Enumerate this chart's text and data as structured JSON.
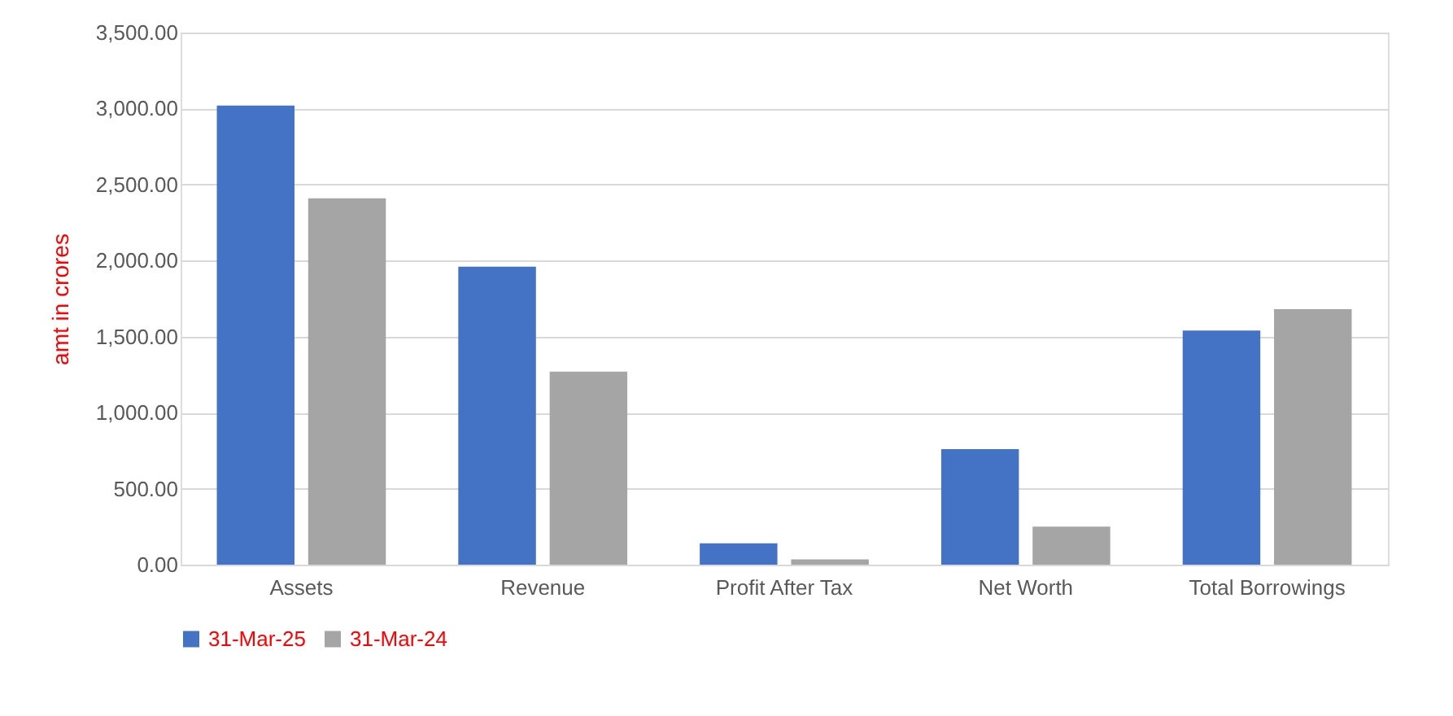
{
  "chart_data": {
    "type": "bar",
    "ylabel": "amt in crores",
    "categories": [
      "Assets",
      "Revenue",
      "Profit After Tax",
      "Net Worth",
      "Total Borrowings"
    ],
    "series": [
      {
        "name": "31-Mar-25",
        "color": "#4472c4",
        "values": [
          3020,
          1960,
          140,
          760,
          1540
        ]
      },
      {
        "name": "31-Mar-24",
        "color": "#a5a5a5",
        "values": [
          2410,
          1270,
          35,
          250,
          1680
        ]
      }
    ],
    "ylim": [
      0,
      3500
    ],
    "yticks": [
      {
        "value": 0,
        "label": "0.00"
      },
      {
        "value": 500,
        "label": "500.00"
      },
      {
        "value": 1000,
        "label": "1,000.00"
      },
      {
        "value": 1500,
        "label": "1,500.00"
      },
      {
        "value": 2000,
        "label": "2,000.00"
      },
      {
        "value": 2500,
        "label": "2,500.00"
      },
      {
        "value": 3000,
        "label": "3,000.00"
      },
      {
        "value": 3500,
        "label": "3,500.00"
      }
    ],
    "grid": "y",
    "legend": "bottom"
  }
}
